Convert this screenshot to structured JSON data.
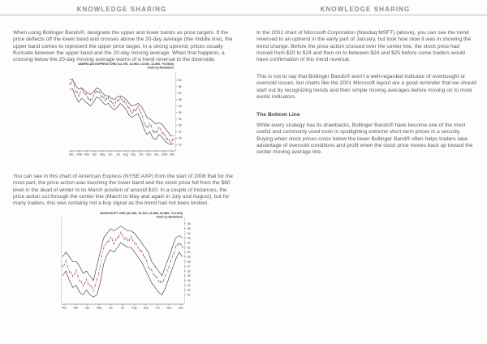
{
  "colors": {
    "band": "#1f1f21",
    "candle_red": "#b23131",
    "candle_blue": "#3a5e93",
    "axis": "#4d4d4f",
    "header_text": "#8a8c8e",
    "body_text": "#5b5b5e",
    "rule": "#b9b9bb"
  },
  "page_left": {
    "header": "KNOWLEDGE SHARING",
    "para1": "When using Bollinger Bands®, designate the upper and lower bands as price targets. If the price deflects off the lower band and crosses above the 20-day average (the middle line), the upper band comes to represent the upper price target. In a strong uptrend, prices usually fluctuate between the upper band and the 20-day moving average. When that happens, a crossing below the 20-day moving average warns of a trend reversal to the downside.",
    "para2": "You can see in this chart of American Express (NYSE:AXP) from the start of 2008 that for the most part, the price action was touching the lower band and the stock price fell from the $60 level in the dead of winter to its March position of around $10. In a couple of instances, the price action cut through the center line (March to May and again in July and August), but for many traders, this was certainly not a buy signal as the trend had not been broken."
  },
  "page_right": {
    "header": "KNOWLEDGE SHARING",
    "para1": "In the 2001 chart of Microsoft Corporation (Nasdaq:MSFT) (above), you can see the trend reversed to an uptrend in the early part of January, but look how slow it was in showing the trend change. Before the price action crossed over the center line, the stock price had moved from $20 to $24 and then on to between $24 and $25 before some traders would have confirmation of this trend reversal.",
    "para2": "This is not to say that Bollinger Bands® aren't a well-regarded indicator of overbought or oversold issues, but charts like the 2001 Microsoft layout are a good reminder that we should start out by recognizing trends and then simple moving averages before moving on to more exotic indicators.",
    "heading": "The Bottom Line",
    "para3": "While every strategy has its drawbacks, Bollinger Bands® have become one of the most useful and commonly used tools in spotlighting extreme short-term prices in a security. Buying when stock prices cross below the lower Bollinger Band® often helps traders take advantage of oversold conditions and profit when the stock price moves back up toward the center moving average line."
  },
  "chart_data": [
    {
      "type": "line",
      "name": "american-express-bollinger-chart",
      "title": "AMERICAN EXPRESS ORD (13.750, 13.960, 13.000, 13.500, +0.0500)",
      "subtitle": "Chart by MetaStock",
      "x_ticks": [
        "Dec",
        "2008",
        "Mar",
        "Apr",
        "May",
        "Jun",
        "Jul",
        "Aug",
        "Sep",
        "Oct",
        "Nov",
        "Dec",
        "2009",
        "Mar"
      ],
      "y_ticks": [
        60,
        55,
        50,
        45,
        40,
        35,
        30,
        25,
        20,
        15,
        10
      ],
      "ylim": [
        7,
        65
      ],
      "grid": false,
      "legend": false,
      "series": [
        {
          "name": "upper-band",
          "values": [
            61,
            60,
            56,
            53,
            54,
            52,
            50,
            49,
            51,
            54,
            53,
            50,
            48,
            48,
            46,
            45,
            47,
            48,
            47,
            45,
            42,
            40,
            41,
            42,
            40,
            36,
            31,
            30,
            28,
            26,
            27,
            26,
            23,
            20,
            17,
            17
          ]
        },
        {
          "name": "price",
          "values": [
            57,
            60,
            52,
            48,
            53,
            50,
            47,
            44,
            48,
            52,
            50,
            47,
            45,
            46,
            43,
            41,
            44,
            46,
            44,
            42,
            38,
            35,
            37,
            39,
            35,
            27,
            23,
            26,
            21,
            19,
            23,
            20,
            17,
            14,
            12,
            14
          ]
        },
        {
          "name": "lower-band",
          "values": [
            53,
            53,
            47,
            43,
            46,
            44,
            42,
            40,
            43,
            47,
            46,
            43,
            41,
            42,
            39,
            37,
            39,
            42,
            40,
            37,
            33,
            31,
            33,
            34,
            29,
            22,
            18,
            20,
            15,
            14,
            18,
            16,
            13,
            11,
            10,
            11
          ]
        }
      ]
    },
    {
      "type": "line",
      "name": "microsoft-bollinger-chart",
      "title": "MICROSOFT ORD (32.380, 32.940, 31.880, 32.880, +0.1920)",
      "subtitle": "Chart by MetaStock",
      "x_ticks": [
        "Feb",
        "Mar",
        "Apr",
        "May",
        "Jun",
        "Jul",
        "Aug",
        "Sep",
        "Oct",
        "Nov",
        "Dec"
      ],
      "y_ticks": [
        36,
        35,
        34,
        33,
        32,
        31,
        30,
        29,
        28,
        27,
        26,
        25,
        24,
        23,
        22,
        21
      ],
      "ylim": [
        19.5,
        37
      ],
      "grid": false,
      "legend": false,
      "series": [
        {
          "name": "upper-band",
          "values": [
            29,
            30,
            29,
            28,
            28,
            27,
            25.5,
            26,
            25,
            24,
            27,
            30,
            33,
            34,
            35,
            34.5,
            35,
            35.5,
            35,
            34.5,
            34.5,
            34,
            33,
            32,
            31,
            30,
            28,
            27,
            26,
            25,
            27,
            29,
            31,
            33,
            33.5,
            33
          ]
        },
        {
          "name": "price",
          "values": [
            27,
            28,
            26,
            25,
            26,
            24,
            23,
            24,
            23,
            22,
            24,
            27,
            31,
            32,
            33,
            32,
            33,
            34,
            33,
            32.5,
            33,
            32,
            31,
            30,
            29,
            27,
            26,
            25,
            24,
            23.5,
            25,
            27,
            29,
            31,
            32,
            31
          ]
        },
        {
          "name": "lower-band",
          "values": [
            25,
            26,
            24,
            22.5,
            23,
            21.5,
            21,
            22,
            21,
            20.5,
            21,
            23.5,
            27.5,
            29.5,
            30.5,
            30,
            31,
            32,
            31.5,
            31,
            31,
            30,
            29,
            28,
            26.5,
            25,
            23.5,
            22.5,
            21.5,
            21,
            22.5,
            24.5,
            26.5,
            28.5,
            30,
            29
          ]
        }
      ]
    }
  ]
}
